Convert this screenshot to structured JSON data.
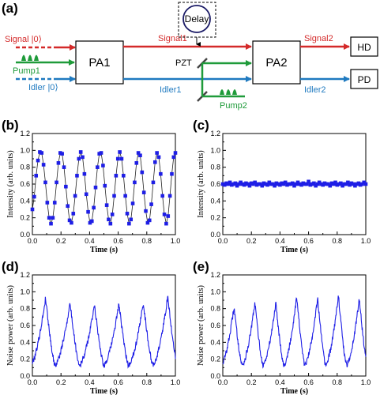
{
  "panels": {
    "a": "(a)",
    "b": "(b)",
    "c": "(c)",
    "d": "(d)",
    "e": "(e)"
  },
  "diagram": {
    "pa1": "PA1",
    "pa2": "PA2",
    "hd": "HD",
    "pd": "PD",
    "delay": "Delay",
    "pzt": "PZT",
    "signal_in": "Signal |0⟩",
    "pump1": "Pump1",
    "idler_in": "Idler |0⟩",
    "signal1": "Signal1",
    "idler1": "Idler1",
    "signal2": "Signal2",
    "idler2": "Idler2",
    "pump2": "Pump2",
    "colors": {
      "signal": "#d42a2a",
      "pump": "#1f9b3a",
      "idler": "#1f7ac0"
    }
  },
  "chart_data": [
    {
      "id": "b",
      "type": "line",
      "xlabel": "Time (s)",
      "ylabel": "Intensity (arb. units)",
      "xlim": [
        0,
        1.0
      ],
      "ylim": [
        0,
        1.2
      ],
      "xticks": [
        "0.0",
        "0.2",
        "0.4",
        "0.6",
        "0.8",
        "1.0"
      ],
      "yticks": [
        "0.0",
        "0.2",
        "0.4",
        "0.6",
        "0.8",
        "1.0",
        "1.2"
      ],
      "color": "#1e1ee6",
      "markers": true,
      "x": [
        0.0,
        0.013,
        0.026,
        0.039,
        0.052,
        0.065,
        0.078,
        0.091,
        0.104,
        0.117,
        0.13,
        0.143,
        0.156,
        0.169,
        0.182,
        0.195,
        0.208,
        0.221,
        0.234,
        0.247,
        0.26,
        0.273,
        0.286,
        0.299,
        0.312,
        0.325,
        0.338,
        0.351,
        0.364,
        0.377,
        0.39,
        0.403,
        0.416,
        0.429,
        0.442,
        0.455,
        0.468,
        0.481,
        0.494,
        0.507,
        0.52,
        0.533,
        0.546,
        0.559,
        0.572,
        0.585,
        0.598,
        0.611,
        0.624,
        0.637,
        0.65,
        0.663,
        0.676,
        0.689,
        0.702,
        0.715,
        0.728,
        0.741,
        0.754,
        0.767,
        0.78,
        0.793,
        0.806,
        0.819,
        0.832,
        0.845,
        0.858,
        0.871,
        0.884,
        0.897,
        0.91,
        0.923,
        0.936,
        0.949,
        0.962,
        0.975,
        0.988,
        1.0
      ],
      "y": [
        0.3,
        0.45,
        0.7,
        0.88,
        0.98,
        0.97,
        0.83,
        0.62,
        0.38,
        0.2,
        0.13,
        0.2,
        0.38,
        0.62,
        0.85,
        0.97,
        0.96,
        0.8,
        0.57,
        0.34,
        0.17,
        0.14,
        0.25,
        0.46,
        0.7,
        0.9,
        0.98,
        0.92,
        0.72,
        0.48,
        0.27,
        0.14,
        0.16,
        0.32,
        0.56,
        0.8,
        0.96,
        0.97,
        0.82,
        0.58,
        0.35,
        0.18,
        0.13,
        0.24,
        0.46,
        0.7,
        0.9,
        0.98,
        0.9,
        0.7,
        0.46,
        0.25,
        0.13,
        0.18,
        0.37,
        0.62,
        0.85,
        0.97,
        0.94,
        0.74,
        0.5,
        0.28,
        0.14,
        0.17,
        0.36,
        0.62,
        0.86,
        0.97,
        0.92,
        0.72,
        0.46,
        0.24,
        0.13,
        0.22,
        0.46,
        0.72,
        0.92,
        0.97
      ]
    },
    {
      "id": "c",
      "type": "line",
      "xlabel": "Time (s)",
      "ylabel": "Intensity (arb. units)",
      "xlim": [
        0,
        1.0
      ],
      "ylim": [
        0,
        1.2
      ],
      "xticks": [
        "0.0",
        "0.2",
        "0.4",
        "0.6",
        "0.8",
        "1.0"
      ],
      "yticks": [
        "0.0",
        "0.2",
        "0.4",
        "0.6",
        "0.8",
        "1.0",
        "1.2"
      ],
      "color": "#1e1ee6",
      "markers": true,
      "x": [
        0.0,
        0.0125,
        0.025,
        0.0375,
        0.05,
        0.0625,
        0.075,
        0.0875,
        0.1,
        0.1125,
        0.125,
        0.1375,
        0.15,
        0.1625,
        0.175,
        0.1875,
        0.2,
        0.2125,
        0.225,
        0.2375,
        0.25,
        0.2625,
        0.275,
        0.2875,
        0.3,
        0.3125,
        0.325,
        0.3375,
        0.35,
        0.3625,
        0.375,
        0.3875,
        0.4,
        0.4125,
        0.425,
        0.4375,
        0.45,
        0.4625,
        0.475,
        0.4875,
        0.5,
        0.5125,
        0.525,
        0.5375,
        0.55,
        0.5625,
        0.575,
        0.5875,
        0.6,
        0.6125,
        0.625,
        0.6375,
        0.65,
        0.6625,
        0.675,
        0.6875,
        0.7,
        0.7125,
        0.725,
        0.7375,
        0.75,
        0.7625,
        0.775,
        0.7875,
        0.8,
        0.8125,
        0.825,
        0.8375,
        0.85,
        0.8625,
        0.875,
        0.8875,
        0.9,
        0.9125,
        0.925,
        0.9375,
        0.95,
        0.9625,
        0.975,
        0.9875,
        1.0
      ],
      "y": [
        0.6,
        0.59,
        0.61,
        0.6,
        0.62,
        0.59,
        0.6,
        0.61,
        0.58,
        0.6,
        0.62,
        0.6,
        0.59,
        0.61,
        0.6,
        0.58,
        0.61,
        0.6,
        0.62,
        0.59,
        0.6,
        0.6,
        0.58,
        0.61,
        0.6,
        0.59,
        0.62,
        0.6,
        0.6,
        0.58,
        0.61,
        0.6,
        0.59,
        0.61,
        0.6,
        0.62,
        0.59,
        0.6,
        0.6,
        0.61,
        0.58,
        0.6,
        0.62,
        0.6,
        0.59,
        0.61,
        0.6,
        0.6,
        0.63,
        0.59,
        0.6,
        0.61,
        0.58,
        0.6,
        0.62,
        0.6,
        0.59,
        0.61,
        0.6,
        0.6,
        0.58,
        0.61,
        0.6,
        0.62,
        0.59,
        0.6,
        0.61,
        0.58,
        0.6,
        0.6,
        0.62,
        0.59,
        0.61,
        0.6,
        0.58,
        0.6,
        0.61,
        0.59,
        0.6,
        0.62,
        0.6
      ]
    },
    {
      "id": "d",
      "type": "line",
      "xlabel": "Time (s)",
      "ylabel": "Noise power (arb. units)",
      "xlim": [
        0,
        1.0
      ],
      "ylim": [
        0,
        1.2
      ],
      "xticks": [
        "0.0",
        "0.2",
        "0.4",
        "0.6",
        "0.8",
        "1.0"
      ],
      "yticks": [
        "0.0",
        "0.2",
        "0.4",
        "0.6",
        "0.8",
        "1.0",
        "1.2"
      ],
      "color": "#1e1ee6",
      "markers": false,
      "periods": [
        [
          0.0,
          0.0
        ],
        [
          0.16,
          0.15
        ],
        [
          0.32,
          0.32
        ],
        [
          0.5,
          0.49
        ],
        [
          0.66,
          0.66
        ],
        [
          0.82,
          0.83
        ],
        [
          1.0,
          1.0
        ]
      ],
      "peaks": [
        0.93,
        0.87,
        0.85,
        0.86,
        0.87,
        0.95
      ]
    },
    {
      "id": "e",
      "type": "line",
      "xlabel": "Time (s)",
      "ylabel": "Noise power (arb. units)",
      "xlim": [
        0,
        1.0
      ],
      "ylim": [
        0,
        1.2
      ],
      "xticks": [
        "0.0",
        "0.2",
        "0.4",
        "0.6",
        "0.8",
        "1.0"
      ],
      "yticks": [
        "0.0",
        "0.2",
        "0.4",
        "0.6",
        "0.8",
        "1.0",
        "1.2"
      ],
      "color": "#1e1ee6",
      "markers": false,
      "peaks": [
        0.82,
        0.87,
        0.87,
        0.95,
        0.93,
        0.96,
        0.92
      ]
    }
  ]
}
